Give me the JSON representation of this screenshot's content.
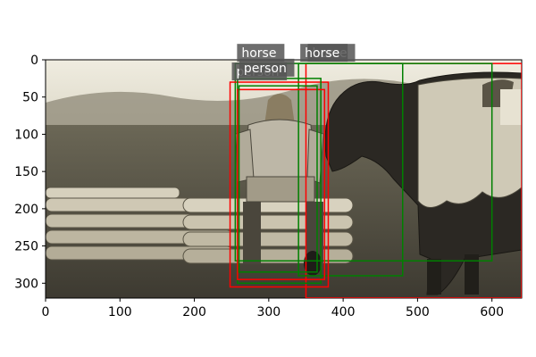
{
  "figure": {
    "x_ticks": [
      "0",
      "100",
      "200",
      "300",
      "400",
      "500",
      "600"
    ],
    "y_ticks": [
      "0",
      "50",
      "100",
      "150",
      "200",
      "250",
      "300"
    ],
    "x_range": [
      0,
      640
    ],
    "y_range": [
      0,
      320
    ]
  },
  "photo": {
    "description_colors": {
      "sky": "#e8e4d6",
      "grass": "#6f6a58",
      "shadow": "#2a2722"
    }
  },
  "detections": [
    {
      "label": "horse",
      "color": "#ff0000",
      "x1": 350,
      "y1": 5,
      "x2": 640,
      "y2": 320,
      "show_label": true
    },
    {
      "label": "horse",
      "color": "#008000",
      "x1": 340,
      "y1": 5,
      "x2": 480,
      "y2": 290,
      "show_label": true
    },
    {
      "label": "horse",
      "color": "#008000",
      "x1": 255,
      "y1": 5,
      "x2": 600,
      "y2": 270,
      "show_label": true
    },
    {
      "label": "person",
      "color": "#ff0000",
      "x1": 248,
      "y1": 30,
      "x2": 380,
      "y2": 305,
      "show_label": true
    },
    {
      "label": "person",
      "color": "#008000",
      "x1": 258,
      "y1": 25,
      "x2": 370,
      "y2": 300,
      "show_label": true
    },
    {
      "label": "person",
      "color": "#ff0000",
      "x1": 258,
      "y1": 40,
      "x2": 375,
      "y2": 295,
      "show_label": false
    },
    {
      "label": "person",
      "color": "#008000",
      "x1": 260,
      "y1": 35,
      "x2": 365,
      "y2": 285,
      "show_label": false
    }
  ]
}
